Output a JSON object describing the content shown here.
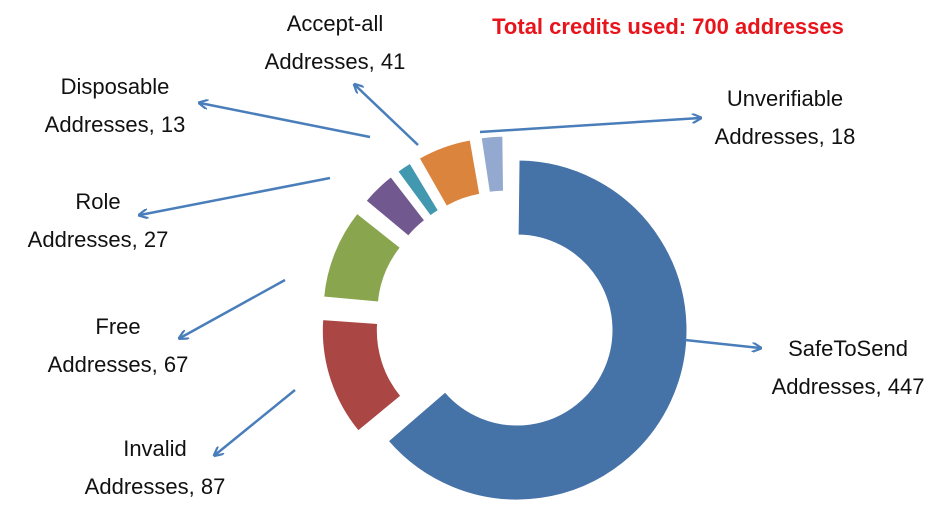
{
  "chart_data": {
    "type": "pie",
    "title": "Total credits used:  700 addresses",
    "categories": [
      "SafeToSend",
      "Invalid",
      "Free",
      "Role",
      "Disposable",
      "Accept-all",
      "Unverifiable"
    ],
    "values": [
      447,
      87,
      67,
      27,
      13,
      41,
      18
    ],
    "value_labels": [
      "Addresses, 447",
      "Addresses, 87",
      "Addresses, 67",
      "Addresses, 27",
      "Addresses, 13",
      "Addresses, 41",
      "Addresses, 18"
    ],
    "colors": [
      "#4572a7",
      "#aa4643",
      "#89a54e",
      "#71588f",
      "#4198af",
      "#db843d",
      "#93a9cf"
    ]
  }
}
